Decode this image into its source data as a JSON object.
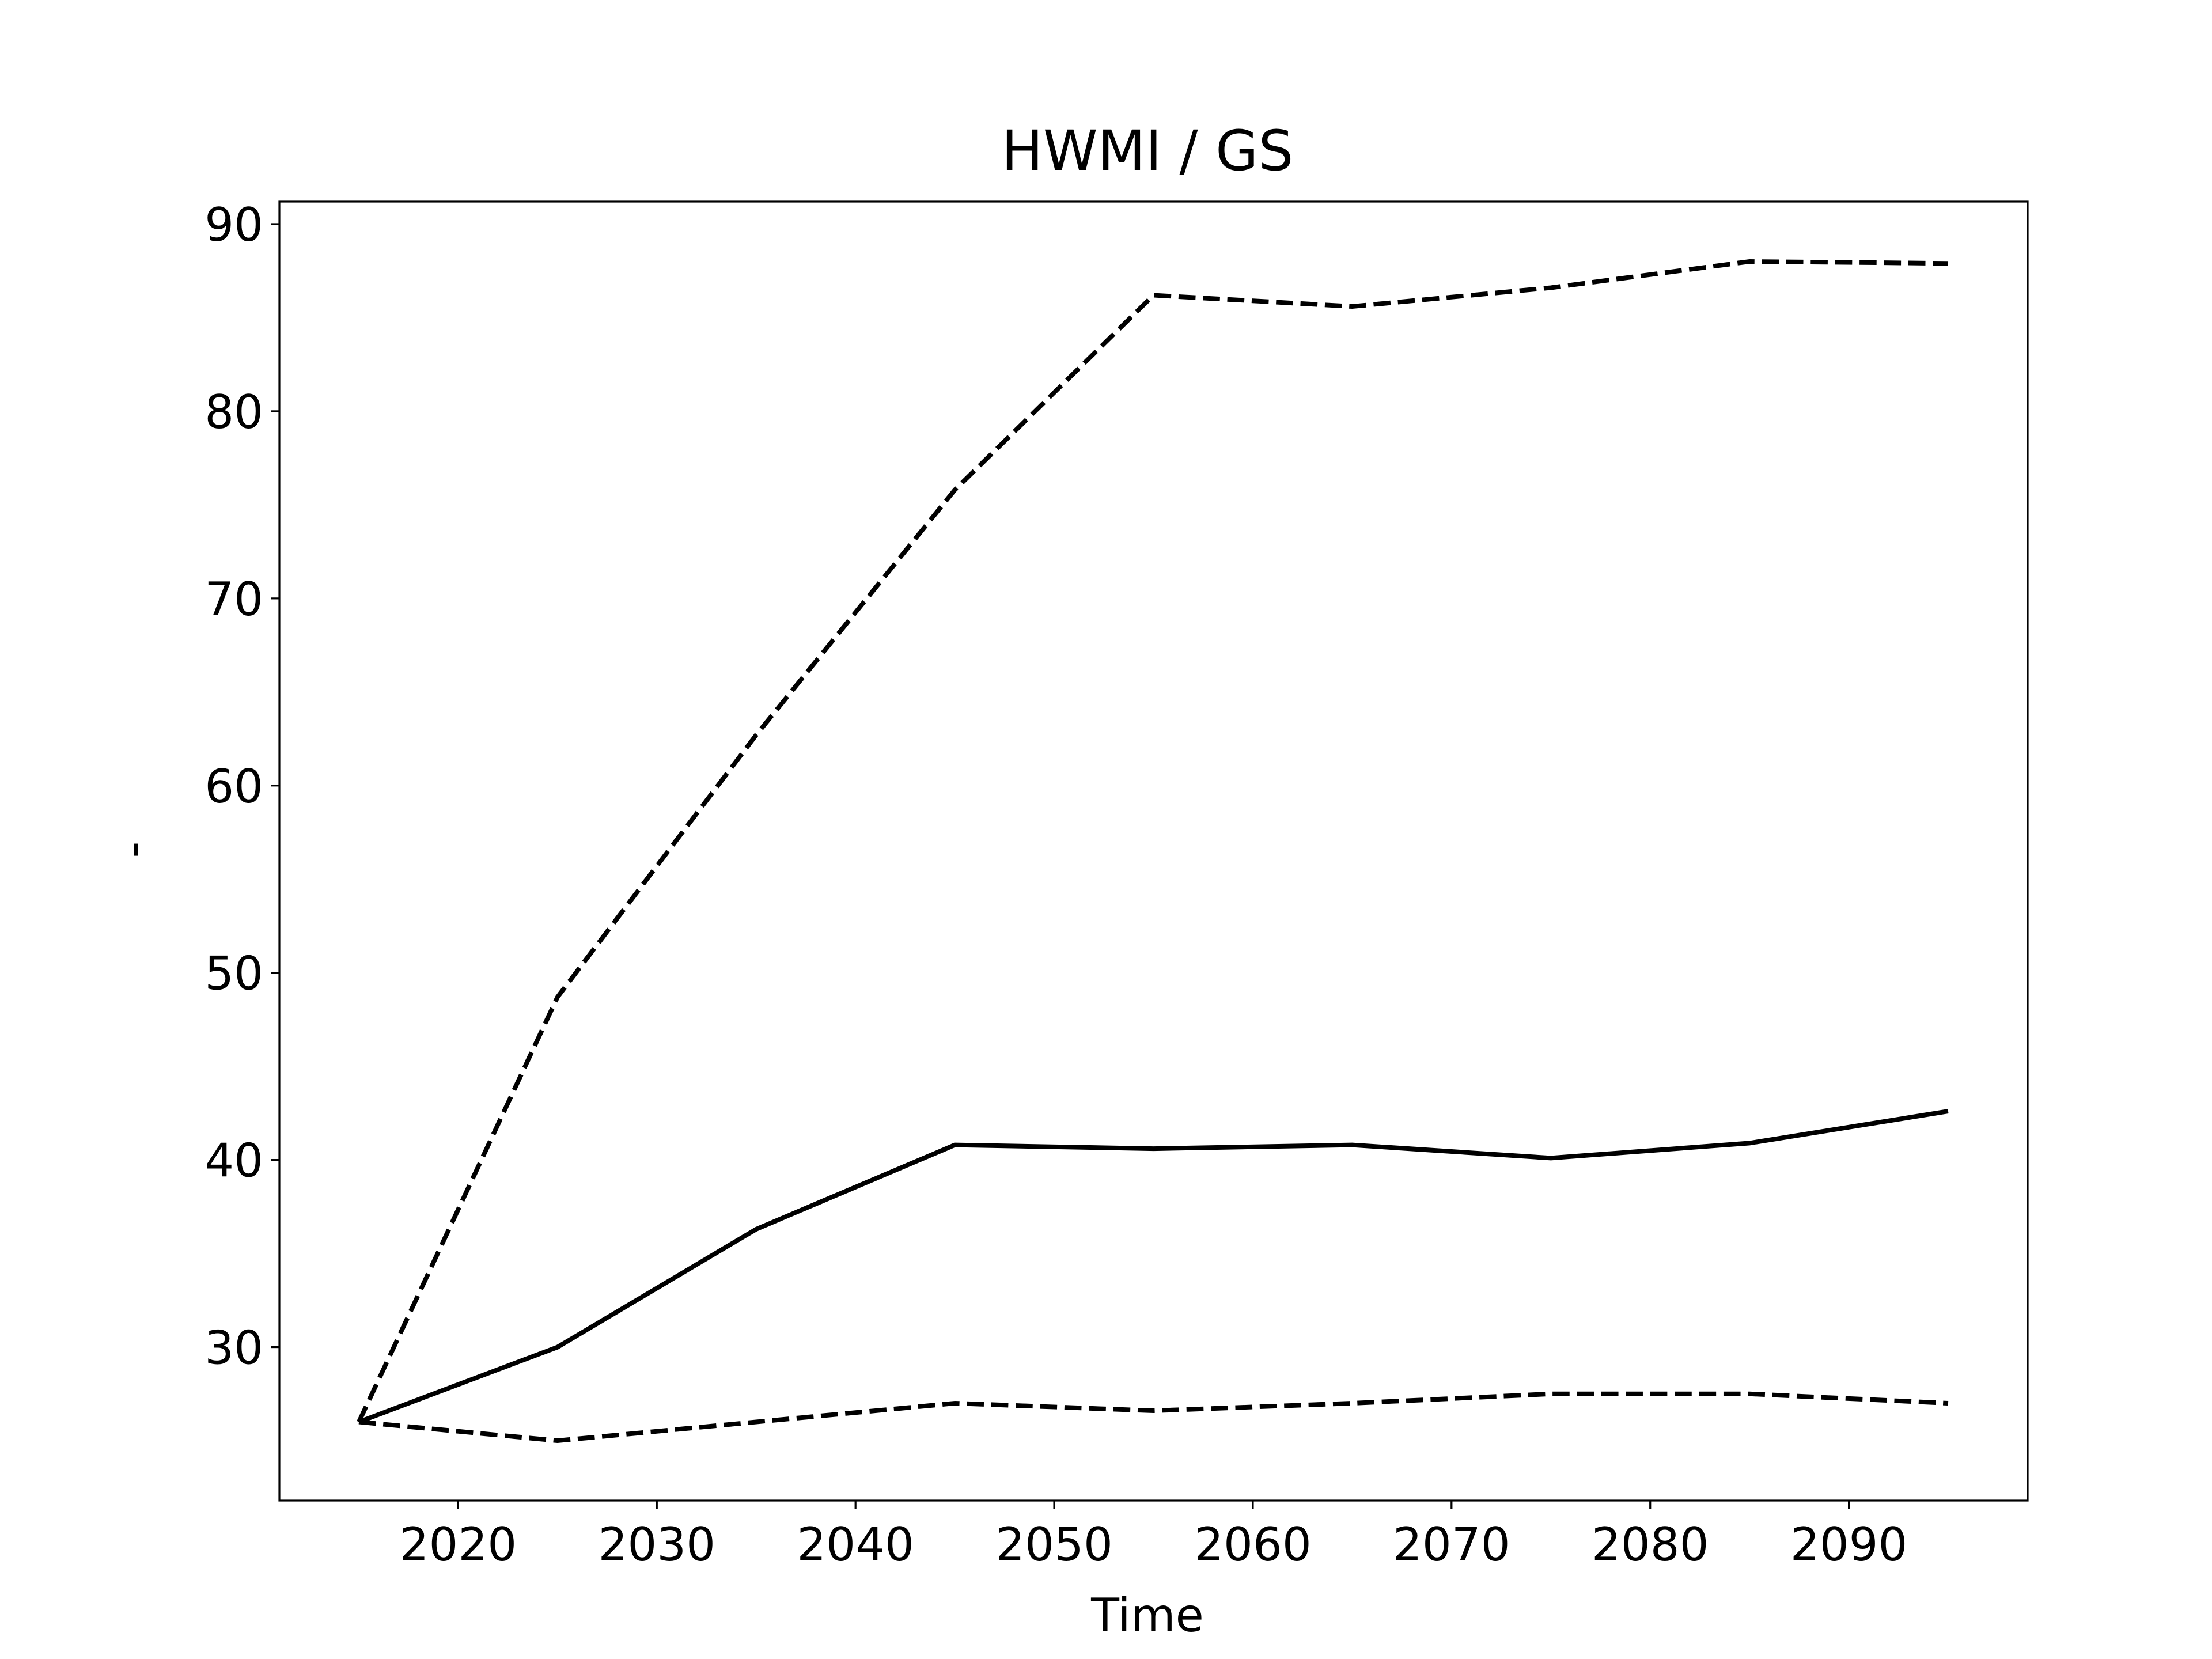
{
  "chart_data": {
    "type": "line",
    "title": "HWMI / GS",
    "xlabel": "Time",
    "ylabel": "-",
    "x": [
      2015,
      2025,
      2035,
      2045,
      2055,
      2065,
      2075,
      2085,
      2095
    ],
    "series": [
      {
        "style": "solid",
        "color": "#000000",
        "values": [
          26.0,
          30.0,
          36.3,
          40.8,
          40.6,
          40.8,
          40.1,
          40.9,
          42.6
        ]
      },
      {
        "style": "dashed",
        "color": "#000000",
        "values": [
          26.0,
          48.7,
          62.7,
          75.8,
          86.2,
          85.6,
          86.6,
          88.0,
          87.9
        ]
      },
      {
        "style": "dashed",
        "color": "#000000",
        "values": [
          26.0,
          25.0,
          26.0,
          27.0,
          26.6,
          27.0,
          27.5,
          27.5,
          27.0
        ]
      }
    ],
    "xlim": [
      2011,
      2099
    ],
    "ylim": [
      21.8,
      91.2
    ],
    "xticks": [
      2020,
      2030,
      2040,
      2050,
      2060,
      2070,
      2080,
      2090
    ],
    "xtick_labels": [
      "2020",
      "2030",
      "2040",
      "2050",
      "2060",
      "2070",
      "2080",
      "2090"
    ],
    "yticks": [
      30,
      40,
      50,
      60,
      70,
      80,
      90
    ],
    "ytick_labels": [
      "30",
      "40",
      "50",
      "60",
      "70",
      "80",
      "90"
    ],
    "grid": false,
    "legend": "none"
  }
}
